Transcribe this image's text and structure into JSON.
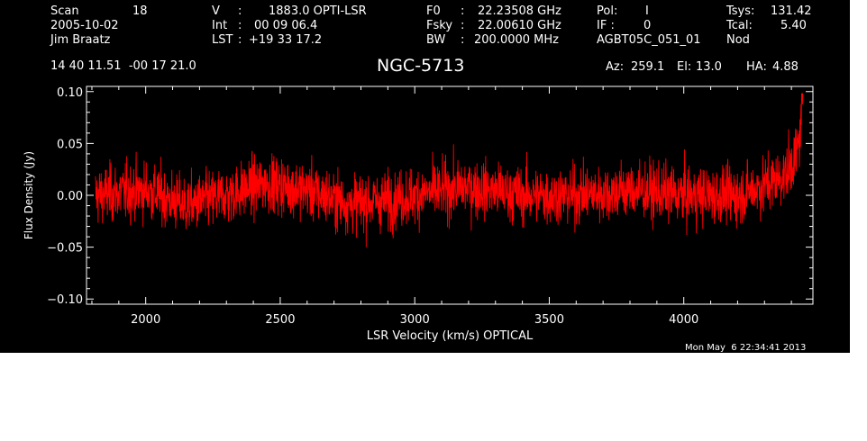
{
  "header": {
    "scan_label": "Scan",
    "scan_value": "18",
    "date": "2005-10-02",
    "observer": "Jim Braatz",
    "v_label": "V",
    "v_sep": ":",
    "v_value": "1883.0 OPTI-LSR",
    "int_label": "Int",
    "int_sep": ":",
    "int_value": "00 09 06.4",
    "lst_label": "LST",
    "lst_sep": ":",
    "lst_value": "+19 33 17.2",
    "f0_label": "F0",
    "f0_sep": ":",
    "f0_value": "22.23508 GHz",
    "fsky_label": "Fsky",
    "fsky_sep": ":",
    "fsky_value": "22.00610 GHz",
    "bw_label": "BW",
    "bw_sep": ":",
    "bw_value": "200.0000 MHz",
    "pol_label": "Pol:",
    "pol_value": "I",
    "if_label": "IF :",
    "if_value": "0",
    "project": "AGBT05C_051_01",
    "tsys_label": "Tsys:",
    "tsys_value": "131.42",
    "tcal_label": "Tcal:",
    "tcal_value": "5.40",
    "mode": "Nod",
    "coords": "14 40 11.51  -00 17 21.0",
    "source": "NGC-5713",
    "az_label": "Az:",
    "az_value": "259.1",
    "el_label": "El:",
    "el_value": "13.0",
    "ha_label": "HA:",
    "ha_value": "4.88",
    "timestamp": "Mon May  6 22:34:41 2013"
  },
  "colors": {
    "background": "#000000",
    "axes": "#ffffff",
    "trace": "#ff0000"
  },
  "chart_data": {
    "type": "line",
    "title": "NGC-5713",
    "xlabel": "LSR Velocity (km/s) OPTICAL",
    "ylabel": "Flux Density (Jy)",
    "xlim": [
      1780,
      4480
    ],
    "ylim": [
      -0.105,
      0.105
    ],
    "xticks": [
      2000,
      2500,
      3000,
      3500,
      4000
    ],
    "xtick_labels": [
      "2000",
      "2500",
      "3000",
      "3500",
      "4000"
    ],
    "yticks": [
      -0.1,
      -0.05,
      0.0,
      0.05,
      0.1
    ],
    "ytick_labels": [
      "−0.10",
      "−0.05",
      "0.00",
      "0.05",
      "0.10"
    ],
    "series": [
      {
        "color": "#ff0000",
        "x_start": 1813,
        "x_end": 4443,
        "noise_rms": 0.025,
        "baseline": [
          [
            1813,
            0.0
          ],
          [
            2000,
            0.005
          ],
          [
            2150,
            -0.01
          ],
          [
            2300,
            0.0
          ],
          [
            2450,
            0.012
          ],
          [
            2600,
            0.005
          ],
          [
            2750,
            -0.008
          ],
          [
            2900,
            -0.005
          ],
          [
            3000,
            0.0
          ],
          [
            3200,
            0.008
          ],
          [
            3400,
            0.0
          ],
          [
            3600,
            0.0
          ],
          [
            3800,
            0.005
          ],
          [
            4000,
            0.0
          ],
          [
            4200,
            0.0
          ],
          [
            4300,
            0.01
          ],
          [
            4380,
            0.02
          ],
          [
            4420,
            0.04
          ],
          [
            4440,
            0.07
          ]
        ]
      }
    ]
  }
}
